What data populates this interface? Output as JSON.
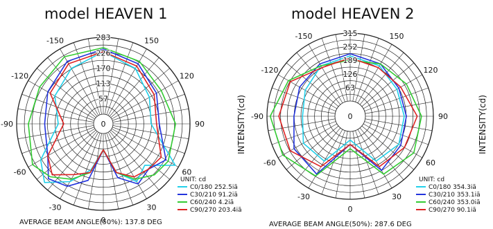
{
  "chart_data": [
    {
      "type": "polar-line",
      "title": "model HEAVEN 1",
      "unit_label": "UNIT: cd",
      "radial_ticks": [
        57,
        113,
        170,
        226,
        283
      ],
      "rmax": 283,
      "angle_labels": [
        "-150",
        "150",
        "-120",
        "120",
        "-90",
        "90",
        "-60",
        "60",
        "-30",
        "30",
        "0"
      ],
      "footer": "AVERAGE BEAM ANGLE(50%): 137.8 DEG",
      "series": [
        {
          "name": "C0/180 252.5iã",
          "color": "#22d0ea",
          "angles": [
            -180,
            -150,
            -120,
            -90,
            -60,
            -45,
            -30,
            -15,
            0,
            15,
            30,
            45,
            60,
            90,
            120,
            150,
            180
          ],
          "values": [
            230,
            200,
            170,
            130,
            230,
            270,
            210,
            140,
            60,
            150,
            210,
            180,
            270,
            140,
            160,
            200,
            230
          ]
        },
        {
          "name": "C30/210 91.2iã",
          "color": "#2233dd",
          "angles": [
            -180,
            -150,
            -120,
            -90,
            -60,
            -45,
            -30,
            -15,
            0,
            15,
            30,
            45,
            60,
            90,
            120,
            150,
            180
          ],
          "values": [
            240,
            230,
            200,
            180,
            200,
            250,
            230,
            180,
            60,
            170,
            220,
            200,
            230,
            170,
            190,
            220,
            240
          ]
        },
        {
          "name": "C60/240 4.2iã",
          "color": "#33cc33",
          "angles": [
            -180,
            -150,
            -120,
            -90,
            -60,
            -45,
            -30,
            -15,
            0,
            15,
            30,
            45,
            60,
            90,
            120,
            150,
            180
          ],
          "values": [
            245,
            250,
            235,
            240,
            265,
            240,
            200,
            150,
            60,
            150,
            200,
            230,
            240,
            230,
            210,
            230,
            245
          ]
        },
        {
          "name": "C90/270 203.4iã",
          "color": "#dd2222",
          "angles": [
            -180,
            -150,
            -120,
            -90,
            -60,
            -45,
            -30,
            -15,
            0,
            15,
            30,
            45,
            60,
            90,
            120,
            150,
            180
          ],
          "values": [
            230,
            220,
            190,
            110,
            200,
            230,
            180,
            150,
            60,
            150,
            190,
            200,
            210,
            160,
            180,
            210,
            230
          ]
        }
      ]
    },
    {
      "type": "polar-line",
      "title": "model HEAVEN 2",
      "unit_label": "UNIT: cd",
      "radial_ticks": [
        63,
        126,
        189,
        252,
        315
      ],
      "rmax": 315,
      "angle_labels": [
        "-150",
        "150",
        "-120",
        "120",
        "-90",
        "90",
        "-60",
        "60",
        "-30",
        "30",
        "0"
      ],
      "footer": "AVERAGE BEAM ANGLE(50%): 287.6 DEG",
      "series": [
        {
          "name": "C0/180 354.3iã",
          "color": "#22d0ea",
          "angles": [
            -180,
            -150,
            -120,
            -90,
            -60,
            -30,
            0,
            30,
            60,
            90,
            120,
            150,
            180
          ],
          "values": [
            210,
            200,
            170,
            150,
            180,
            170,
            40,
            170,
            190,
            180,
            180,
            200,
            210
          ]
        },
        {
          "name": "C30/210 353.1iã",
          "color": "#2233dd",
          "angles": [
            -180,
            -150,
            -120,
            -90,
            -60,
            -30,
            0,
            30,
            60,
            90,
            120,
            150,
            180
          ],
          "values": [
            220,
            210,
            200,
            190,
            230,
            240,
            60,
            220,
            200,
            190,
            190,
            210,
            220
          ]
        },
        {
          "name": "C60/240 353.0iã",
          "color": "#33cc33",
          "angles": [
            -180,
            -150,
            -120,
            -90,
            -60,
            -30,
            0,
            30,
            60,
            90,
            120,
            150,
            180
          ],
          "values": [
            190,
            200,
            260,
            300,
            290,
            250,
            80,
            240,
            270,
            260,
            230,
            210,
            190
          ]
        },
        {
          "name": "C90/270 90.1iã",
          "color": "#dd2222",
          "angles": [
            -180,
            -150,
            -120,
            -90,
            -60,
            -30,
            0,
            30,
            60,
            90,
            120,
            150,
            180
          ],
          "values": [
            200,
            190,
            250,
            260,
            250,
            200,
            60,
            200,
            220,
            240,
            200,
            190,
            200
          ]
        }
      ]
    }
  ],
  "intensity_label": "INTENSITY(cd)",
  "colors": {
    "grid": "#222222",
    "background": "#ffffff"
  }
}
